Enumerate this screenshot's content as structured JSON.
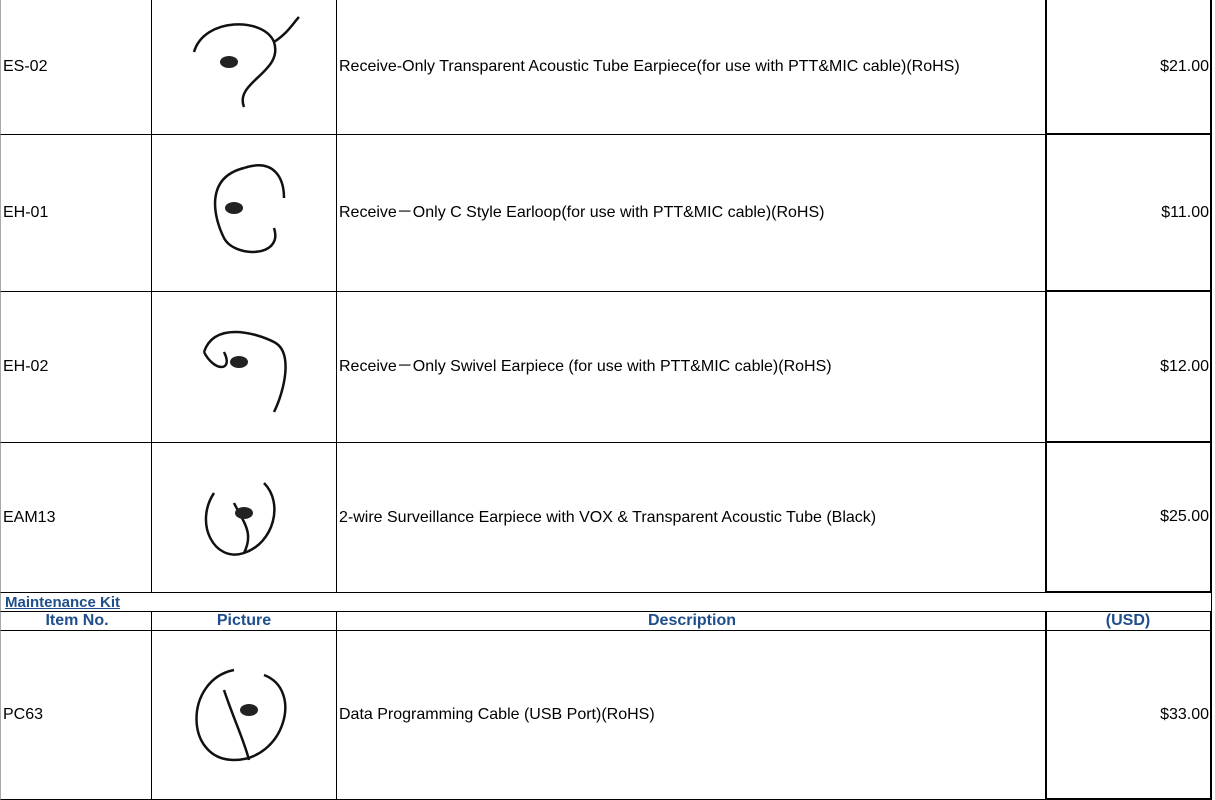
{
  "table": {
    "rows": [
      {
        "item": "ES-02",
        "description": "Receive-Only Transparent Acoustic Tube Earpiece(for use with PTT&MIC cable)(RoHS)",
        "price": "$21.00"
      },
      {
        "item": "EH-01",
        "description": "Receive－Only C Style Earloop(for use with PTT&MIC cable)(RoHS)",
        "price": "$11.00"
      },
      {
        "item": "EH-02",
        "description": "Receive－Only Swivel Earpiece (for use with PTT&MIC cable)(RoHS)",
        "price": "$12.00"
      },
      {
        "item": "EAM13",
        "description": "2-wire Surveillance Earpiece with  VOX & Transparent Acoustic Tube (Black)",
        "price": "$25.00"
      }
    ],
    "section": {
      "title": "Maintenance Kit",
      "header": [
        "Item No.",
        "Picture",
        "Description",
        "(USD)"
      ],
      "rows": [
        {
          "item": "PC63",
          "description": "Data Programming Cable (USB Port)(RoHS)",
          "price": "$33.00"
        }
      ]
    }
  }
}
